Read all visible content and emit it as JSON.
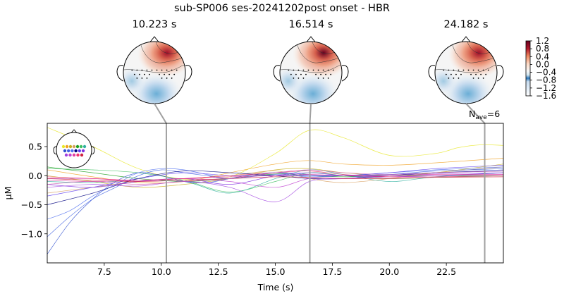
{
  "figure": {
    "title": "sub-SP006 ses-20241202post onset - HBR"
  },
  "topomaps": [
    {
      "time_label": "10.223 s",
      "time": 10.223,
      "peak_intensity": 0.75
    },
    {
      "time_label": "16.514 s",
      "time": 16.514,
      "peak_intensity": 1.0
    },
    {
      "time_label": "24.182 s",
      "time": 24.182,
      "peak_intensity": 0.9
    }
  ],
  "colorbar": {
    "ticks": [
      "1.2",
      "0.8",
      "0.4",
      "0.0",
      "−0.4",
      "−0.8",
      "−1.2",
      "−1.6"
    ],
    "range": [
      -1.6,
      1.2
    ]
  },
  "nave": {
    "label_main": "N",
    "label_sub": "ave",
    "label_value": "=6"
  },
  "chart_data": {
    "type": "line",
    "title": "sub-SP006 ses-20241202post onset - HBR",
    "xlabel": "Time (s)",
    "ylabel": "µM",
    "xlim": [
      5.0,
      25.0
    ],
    "ylim": [
      -1.5,
      0.9
    ],
    "xticks": [
      7.5,
      10.0,
      12.5,
      15.0,
      17.5,
      20.0,
      22.5
    ],
    "xtick_labels": [
      "7.5",
      "10.0",
      "12.5",
      "15.0",
      "17.5",
      "20.0",
      "22.5"
    ],
    "yticks": [
      0.5,
      0.0,
      -0.5,
      -1.0
    ],
    "ytick_labels": [
      "0.5",
      "0.0",
      "−0.5",
      "−1.0"
    ],
    "grid": false,
    "vlines": [
      10.223,
      16.514,
      24.182
    ],
    "series": [
      {
        "color": "#e8e82a",
        "x": [
          5,
          7,
          9,
          11,
          13,
          15,
          16.5,
          18,
          20,
          22,
          23,
          24,
          25
        ],
        "y": [
          0.83,
          0.5,
          0.12,
          -0.06,
          -0.02,
          0.38,
          0.78,
          0.65,
          0.35,
          0.38,
          0.48,
          0.53,
          0.52
        ]
      },
      {
        "color": "#f0a020",
        "x": [
          5,
          7,
          9,
          11,
          13,
          15,
          16.5,
          18,
          20,
          22,
          25
        ],
        "y": [
          0.1,
          -0.02,
          -0.12,
          -0.1,
          0.05,
          0.2,
          0.26,
          0.2,
          0.18,
          0.22,
          0.3
        ]
      },
      {
        "color": "#c8b020",
        "x": [
          5,
          7,
          9,
          11,
          13,
          15,
          16.5,
          18,
          20,
          22,
          25
        ],
        "y": [
          0.0,
          -0.1,
          -0.2,
          -0.15,
          -0.05,
          0.1,
          0.12,
          0.05,
          0.0,
          0.05,
          0.2
        ]
      },
      {
        "color": "#d8a060",
        "x": [
          5,
          7,
          9,
          11,
          13,
          15,
          16.5,
          18,
          20,
          22,
          25
        ],
        "y": [
          -0.3,
          -0.2,
          -0.1,
          -0.05,
          0.0,
          0.08,
          -0.05,
          -0.12,
          -0.05,
          0.05,
          0.15
        ]
      },
      {
        "color": "#20a020",
        "x": [
          5,
          7,
          9,
          11,
          13,
          15,
          16.5,
          18,
          20,
          22,
          25
        ],
        "y": [
          0.15,
          0.05,
          -0.05,
          -0.1,
          -0.05,
          0.03,
          0.0,
          -0.02,
          0.0,
          0.0,
          0.0
        ]
      },
      {
        "color": "#40c060",
        "x": [
          5,
          7,
          9,
          11,
          13,
          15,
          16.5,
          18,
          20,
          22,
          25
        ],
        "y": [
          0.12,
          0.1,
          0.05,
          -0.08,
          -0.28,
          -0.1,
          0.05,
          0.0,
          -0.05,
          -0.03,
          0.0
        ]
      },
      {
        "color": "#30b0a0",
        "x": [
          5,
          7,
          9,
          11,
          13,
          15,
          16.5,
          18,
          20,
          22,
          25
        ],
        "y": [
          -0.1,
          -0.12,
          -0.08,
          -0.1,
          -0.3,
          -0.05,
          0.1,
          0.02,
          -0.1,
          -0.02,
          0.05
        ]
      },
      {
        "color": "#3050d0",
        "x": [
          5,
          6,
          7,
          8,
          9,
          10,
          11,
          12,
          13,
          14,
          15,
          16.5,
          18,
          20,
          22,
          25
        ],
        "y": [
          -1.35,
          -0.8,
          -0.4,
          -0.1,
          0.05,
          0.0,
          -0.1,
          -0.12,
          -0.05,
          0.02,
          0.05,
          0.0,
          0.0,
          0.02,
          0.05,
          0.1
        ]
      },
      {
        "color": "#4060e0",
        "x": [
          5,
          6,
          7,
          8,
          9,
          10,
          11,
          12,
          13,
          15,
          16.5,
          18,
          20,
          22,
          25
        ],
        "y": [
          -1.05,
          -0.7,
          -0.4,
          -0.2,
          0.0,
          0.1,
          0.05,
          0.0,
          -0.05,
          0.05,
          0.02,
          0.0,
          0.02,
          0.08,
          0.12
        ]
      },
      {
        "color": "#5070f0",
        "x": [
          5,
          6,
          7,
          8,
          9,
          10,
          11,
          12,
          13,
          15,
          16.5,
          18,
          20,
          22,
          25
        ],
        "y": [
          -0.75,
          -0.6,
          -0.35,
          -0.15,
          0.05,
          0.12,
          0.1,
          0.02,
          -0.05,
          0.02,
          -0.02,
          0.0,
          0.05,
          0.1,
          0.15
        ]
      },
      {
        "color": "#000080",
        "x": [
          5,
          7,
          9,
          11,
          13,
          15,
          16.5,
          18,
          20,
          22,
          25
        ],
        "y": [
          -0.5,
          -0.3,
          -0.05,
          0.08,
          0.05,
          0.0,
          -0.05,
          -0.05,
          0.0,
          0.05,
          0.08
        ]
      },
      {
        "color": "#6040f0",
        "x": [
          5,
          7,
          9,
          11,
          13,
          15,
          16.5,
          18,
          20,
          22,
          25
        ],
        "y": [
          -0.35,
          -0.2,
          -0.05,
          0.05,
          0.0,
          0.0,
          0.0,
          0.0,
          0.05,
          0.12,
          0.18
        ]
      },
      {
        "color": "#8030e0",
        "x": [
          5,
          7,
          9,
          11,
          13,
          15,
          16.5,
          18,
          20,
          22,
          25
        ],
        "y": [
          -0.15,
          -0.2,
          -0.1,
          -0.05,
          -0.15,
          0.0,
          0.05,
          0.0,
          -0.02,
          0.0,
          0.05
        ]
      },
      {
        "color": "#a040e0",
        "x": [
          5,
          7,
          9,
          11,
          13,
          15,
          16.5,
          18,
          20,
          22,
          25
        ],
        "y": [
          -0.2,
          -0.15,
          -0.18,
          -0.1,
          -0.2,
          -0.45,
          -0.1,
          -0.05,
          0.0,
          0.03,
          0.05
        ]
      },
      {
        "color": "#c040d0",
        "x": [
          5,
          7,
          9,
          11,
          13,
          15,
          16.5,
          18,
          20,
          22,
          25
        ],
        "y": [
          -0.05,
          -0.05,
          -0.1,
          -0.05,
          -0.1,
          -0.2,
          -0.05,
          -0.05,
          -0.02,
          0.0,
          0.02
        ]
      },
      {
        "color": "#e040a0",
        "x": [
          5,
          7,
          9,
          11,
          13,
          15,
          16.5,
          18,
          20,
          22,
          25
        ],
        "y": [
          -0.08,
          -0.1,
          -0.08,
          -0.05,
          -0.02,
          0.0,
          0.02,
          0.0,
          0.0,
          0.02,
          0.02
        ]
      },
      {
        "color": "#f03070",
        "x": [
          5,
          7,
          9,
          11,
          13,
          15,
          16.5,
          18,
          20,
          22,
          25
        ],
        "y": [
          -0.02,
          -0.05,
          -0.08,
          -0.05,
          0.0,
          0.05,
          0.08,
          0.02,
          -0.02,
          -0.02,
          0.0
        ]
      },
      {
        "color": "#d02040",
        "x": [
          5,
          7,
          9,
          11,
          13,
          15,
          16.5,
          18,
          20,
          22,
          25
        ],
        "y": [
          -0.05,
          -0.08,
          -0.1,
          -0.08,
          -0.05,
          -0.02,
          -0.03,
          -0.05,
          -0.05,
          -0.03,
          -0.02
        ]
      },
      {
        "color": "#d060b0",
        "x": [
          5,
          7,
          9,
          11,
          13,
          15,
          16.5,
          18,
          20,
          22,
          25
        ],
        "y": [
          -0.15,
          -0.1,
          -0.15,
          -0.1,
          -0.05,
          0.05,
          0.1,
          0.05,
          0.02,
          0.05,
          0.08
        ]
      }
    ]
  }
}
